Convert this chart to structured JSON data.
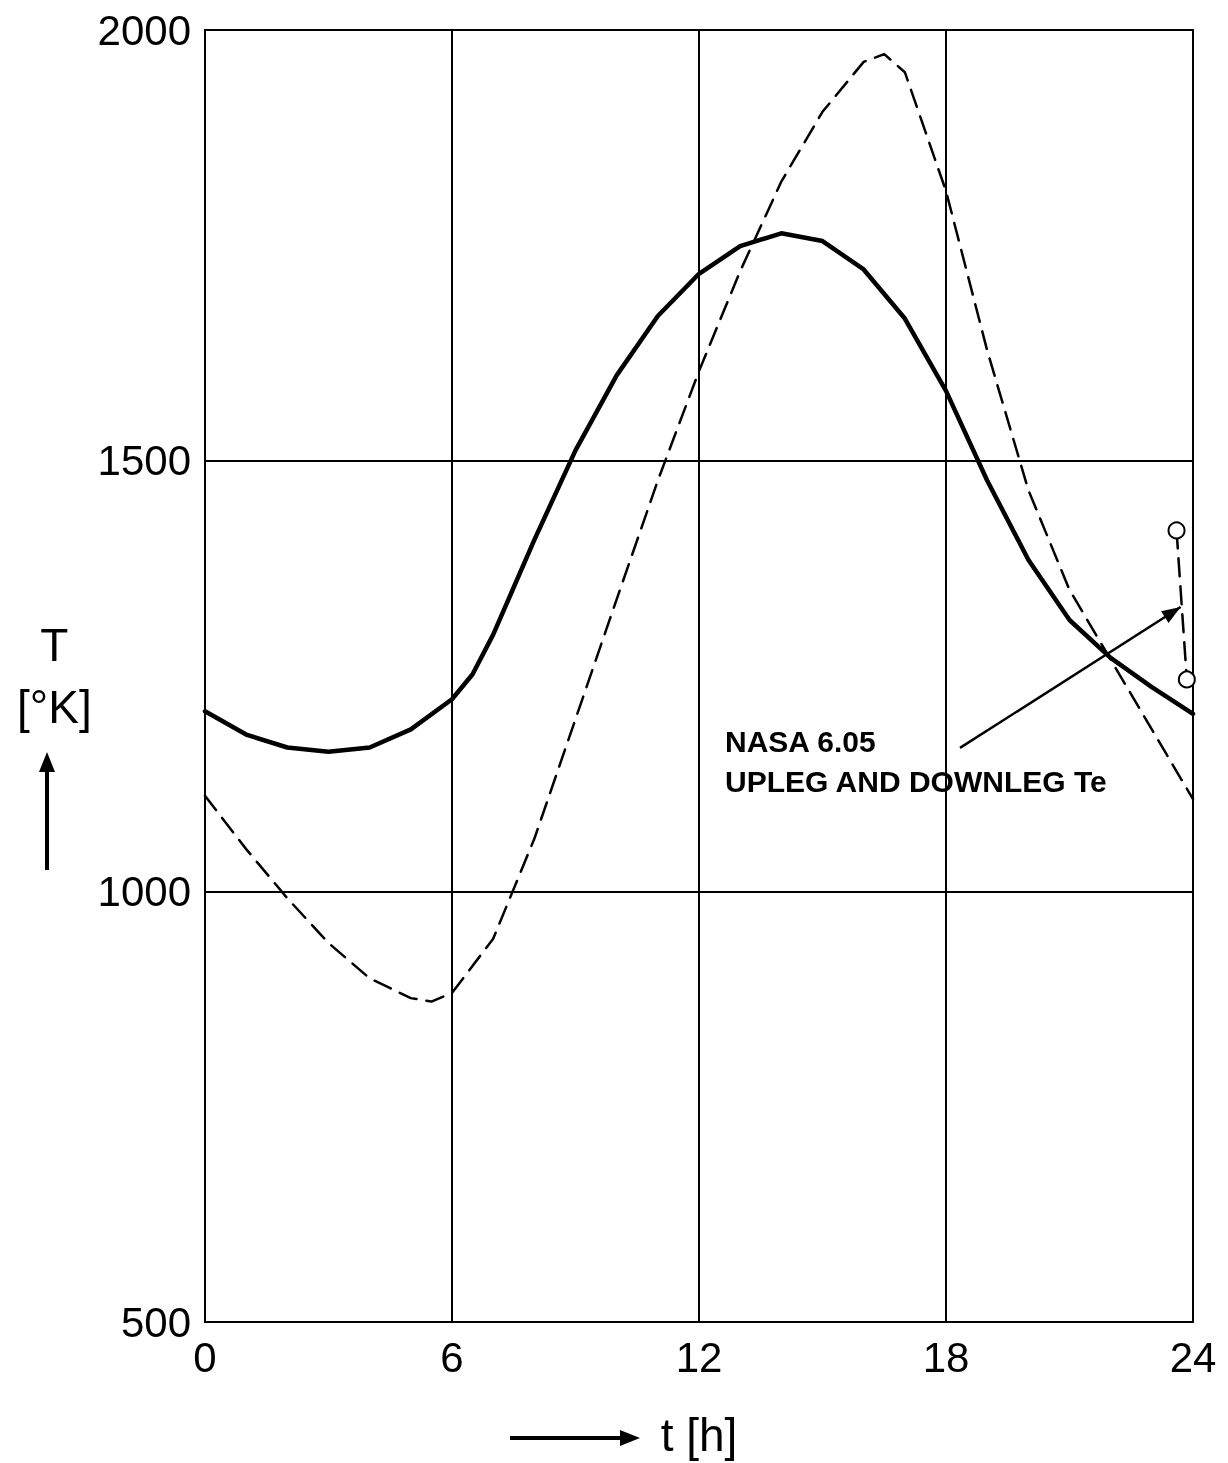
{
  "chart_data": {
    "type": "line",
    "xlabel": "t [h]",
    "ylabel": "T [°K]",
    "xlim": [
      0,
      24
    ],
    "ylim": [
      500,
      2000
    ],
    "xticks": [
      0,
      6,
      12,
      18,
      24
    ],
    "yticks": [
      500,
      1000,
      1500,
      2000
    ],
    "grid": true,
    "series": [
      {
        "color": "#000000",
        "line_style": "solid",
        "marker": "none",
        "x": [
          0,
          1,
          2,
          3,
          4,
          5,
          6,
          6.5,
          7,
          8,
          9,
          10,
          11,
          12,
          13,
          14,
          15,
          16,
          17,
          18,
          19,
          20,
          21,
          22,
          23,
          24
        ],
        "values": [
          1209,
          1182,
          1167,
          1162,
          1167,
          1188,
          1223,
          1252,
          1298,
          1408,
          1512,
          1599,
          1668,
          1717,
          1749,
          1764,
          1755,
          1722,
          1665,
          1581,
          1477,
          1385,
          1315,
          1271,
          1237,
          1206
        ]
      },
      {
        "color": "#000000",
        "line_style": "dashed",
        "marker": "none",
        "x": [
          0,
          1,
          2,
          3,
          4,
          5,
          5.5,
          6,
          7,
          8,
          9,
          10,
          11,
          12,
          13,
          14,
          15,
          16,
          16.5,
          17,
          18,
          19,
          20,
          21,
          22,
          23,
          24
        ],
        "values": [
          1111,
          1049,
          992,
          940,
          899,
          876,
          872,
          882,
          945,
          1061,
          1200,
          1339,
          1477,
          1604,
          1720,
          1824,
          1905,
          1963,
          1972,
          1951,
          1813,
          1628,
          1466,
          1350,
          1269,
          1188,
          1107
        ]
      },
      {
        "color": "#000000",
        "line_style": "dashed",
        "marker": "circle",
        "x": [
          23.6,
          23.85
        ],
        "values": [
          1419,
          1246
        ]
      }
    ],
    "annotations": [
      {
        "text": "NASA 6.05\nUPLEG AND DOWNLEG Te",
        "x": 23.7,
        "y": 1330
      }
    ]
  }
}
